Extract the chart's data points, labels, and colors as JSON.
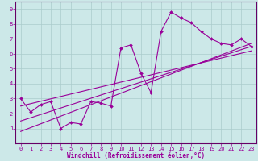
{
  "xlabel": "Windchill (Refroidissement éolien,°C)",
  "bg_color": "#cce8e8",
  "grid_color": "#aacccc",
  "line_color": "#990099",
  "spine_color": "#660066",
  "xlim": [
    -0.5,
    23.5
  ],
  "ylim": [
    0,
    9.5
  ],
  "xticks": [
    0,
    1,
    2,
    3,
    4,
    5,
    6,
    7,
    8,
    9,
    10,
    11,
    12,
    13,
    14,
    15,
    16,
    17,
    18,
    19,
    20,
    21,
    22,
    23
  ],
  "yticks": [
    1,
    2,
    3,
    4,
    5,
    6,
    7,
    8,
    9
  ],
  "data_x": [
    0,
    1,
    2,
    3,
    4,
    5,
    6,
    7,
    8,
    9,
    10,
    11,
    12,
    13,
    14,
    15,
    16,
    17,
    18,
    19,
    20,
    21,
    22,
    23
  ],
  "data_y": [
    3.0,
    2.1,
    2.6,
    2.8,
    1.0,
    1.4,
    1.3,
    2.8,
    2.7,
    2.5,
    6.4,
    6.6,
    4.7,
    3.4,
    7.5,
    8.8,
    8.4,
    8.1,
    7.5,
    7.0,
    6.7,
    6.6,
    7.0,
    6.5
  ],
  "reg_lines": [
    [
      0.8,
      6.7
    ],
    [
      1.5,
      6.5
    ],
    [
      2.5,
      6.2
    ]
  ],
  "xlabel_fontsize": 5.5,
  "tick_fontsize": 5.0
}
